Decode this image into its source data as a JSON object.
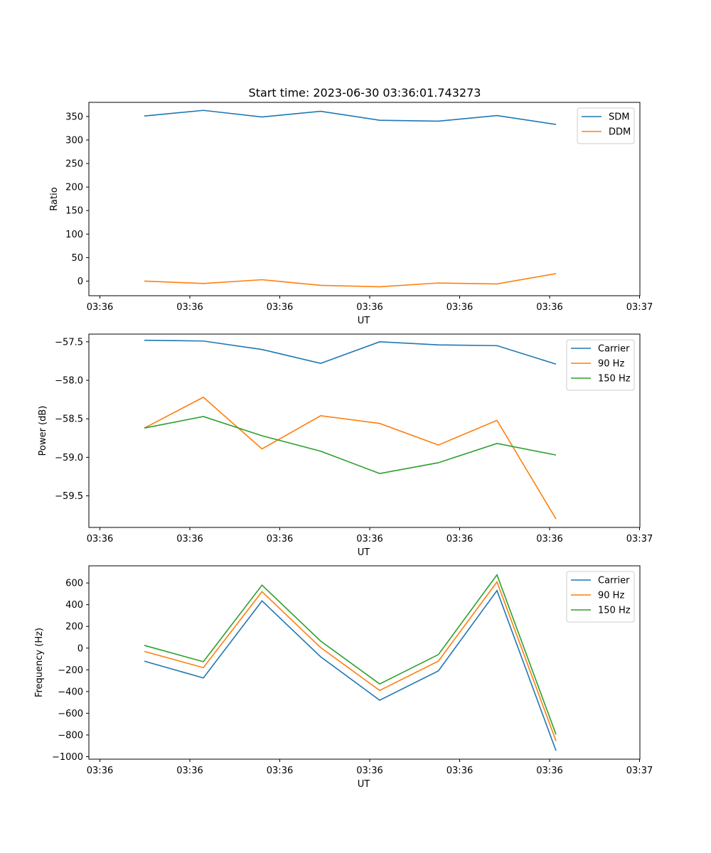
{
  "figure": {
    "title": "Start time: 2023-06-30 03:36:01.743273"
  },
  "chart_data": [
    {
      "type": "line",
      "xlabel": "UT",
      "ylabel": "Ratio",
      "x_tick_labels": [
        "03:36",
        "03:36",
        "03:36",
        "03:36",
        "03:36",
        "03:36",
        "03:37"
      ],
      "y_ticks": [
        0,
        50,
        100,
        150,
        200,
        250,
        300,
        350
      ],
      "ylim": [
        -31,
        380
      ],
      "legend_position": "top-right",
      "series": [
        {
          "name": "SDM",
          "color": "#1f77b4",
          "values": [
            351,
            363,
            349,
            361,
            342,
            340,
            352,
            333
          ]
        },
        {
          "name": "DDM",
          "color": "#ff7f0e",
          "values": [
            0,
            -5,
            3,
            -9,
            -12,
            -4,
            -6,
            16
          ]
        }
      ]
    },
    {
      "type": "line",
      "xlabel": "UT",
      "ylabel": "Power (dB)",
      "x_tick_labels": [
        "03:36",
        "03:36",
        "03:36",
        "03:36",
        "03:36",
        "03:36",
        "03:37"
      ],
      "y_ticks": [
        -57.5,
        -58.0,
        -58.5,
        -59.0,
        -59.5
      ],
      "y_tick_labels": [
        "−57.5",
        "−58.0",
        "−58.5",
        "−59.0",
        "−59.5"
      ],
      "ylim": [
        -59.91,
        -57.4
      ],
      "legend_position": "top-right",
      "series": [
        {
          "name": "Carrier",
          "color": "#1f77b4",
          "values": [
            -57.48,
            -57.49,
            -57.6,
            -57.78,
            -57.5,
            -57.54,
            -57.55,
            -57.79
          ]
        },
        {
          "name": "90 Hz",
          "color": "#ff7f0e",
          "values": [
            -58.62,
            -58.22,
            -58.89,
            -58.46,
            -58.56,
            -58.84,
            -58.52,
            -59.8
          ]
        },
        {
          "name": "150 Hz",
          "color": "#2ca02c",
          "values": [
            -58.62,
            -58.47,
            -58.72,
            -58.92,
            -59.21,
            -59.07,
            -58.82,
            -58.97
          ]
        }
      ]
    },
    {
      "type": "line",
      "xlabel": "UT",
      "ylabel": "Frequency (Hz)",
      "x_tick_labels": [
        "03:36",
        "03:36",
        "03:36",
        "03:36",
        "03:36",
        "03:36",
        "03:37"
      ],
      "y_ticks": [
        600,
        400,
        200,
        0,
        -200,
        -400,
        -600,
        -800,
        -1000
      ],
      "y_tick_labels": [
        "600",
        "400",
        "200",
        "0",
        "−200",
        "−400",
        "−600",
        "−800",
        "−1000"
      ],
      "ylim": [
        -1023,
        758
      ],
      "legend_position": "top-right",
      "series": [
        {
          "name": "Carrier",
          "color": "#1f77b4",
          "values": [
            -120,
            -275,
            435,
            -80,
            -480,
            -210,
            530,
            -945
          ]
        },
        {
          "name": "90 Hz",
          "color": "#ff7f0e",
          "values": [
            -30,
            -180,
            520,
            5,
            -390,
            -120,
            610,
            -855
          ]
        },
        {
          "name": "150 Hz",
          "color": "#2ca02c",
          "values": [
            25,
            -125,
            580,
            65,
            -330,
            -60,
            675,
            -795
          ]
        }
      ]
    }
  ]
}
